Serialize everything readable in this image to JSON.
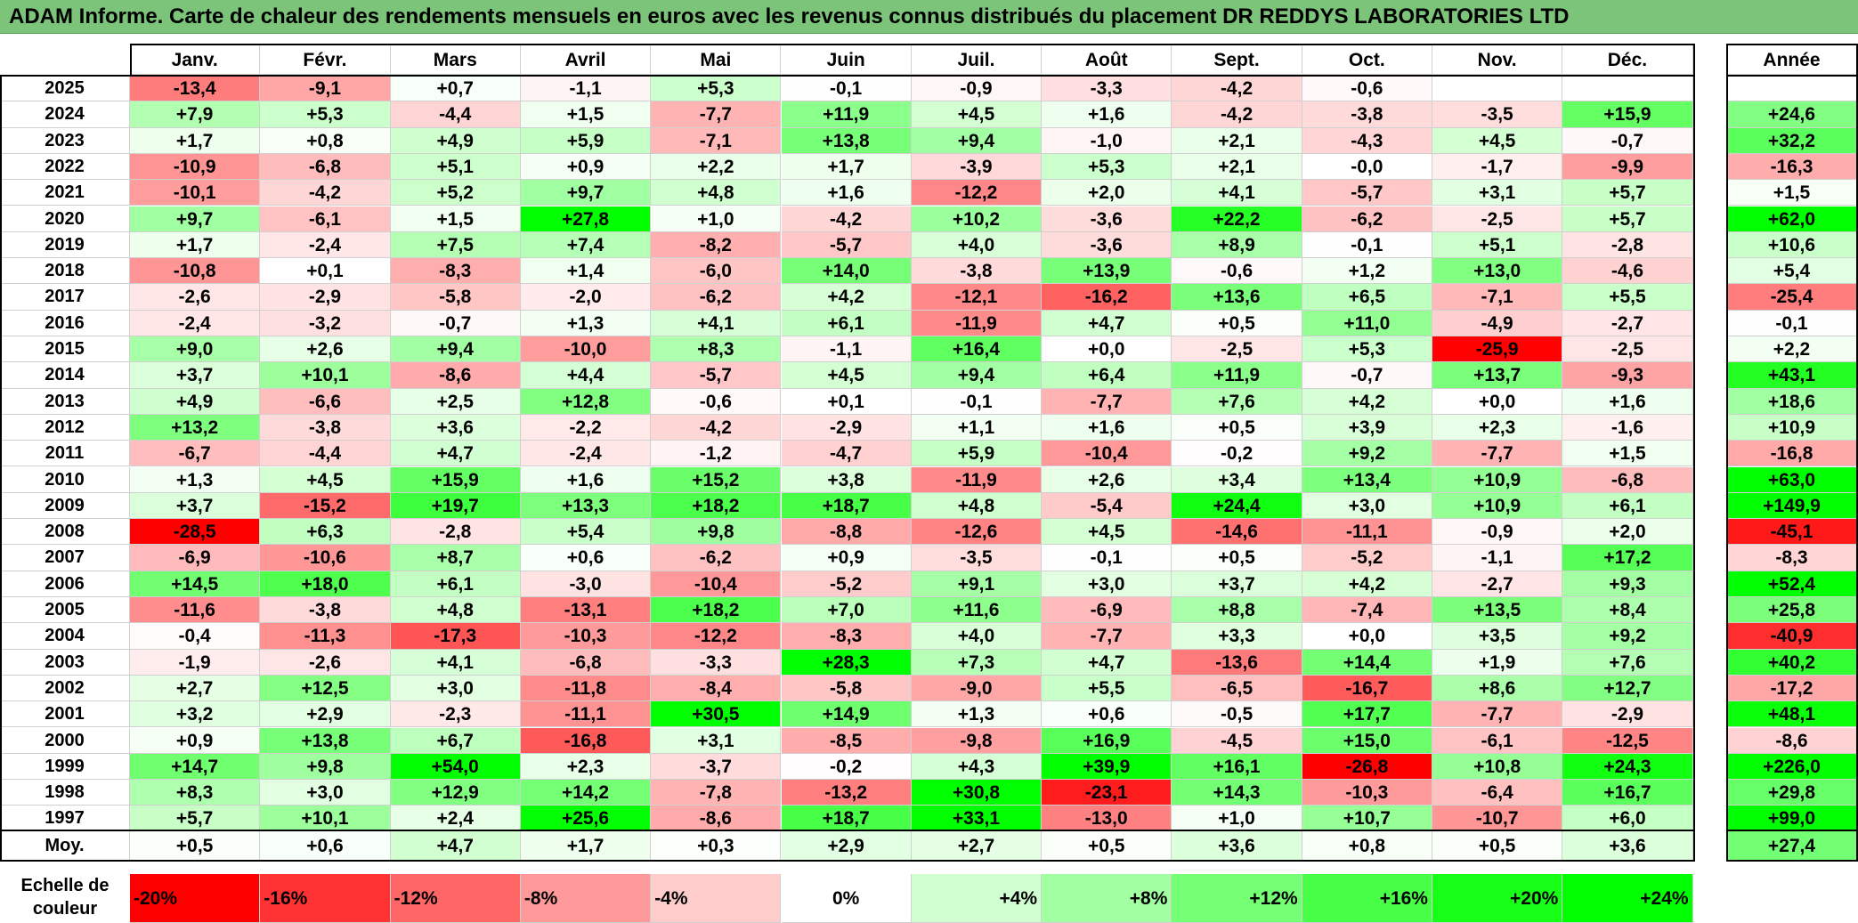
{
  "title": "ADAM Informe. Carte de chaleur des rendements mensuels en euros avec les revenus connus distribués du placement DR REDDYS LABORATORIES LTD",
  "chart_data": {
    "type": "heatmap",
    "months": [
      "Janv.",
      "Févr.",
      "Mars",
      "Avril",
      "Mai",
      "Juin",
      "Juil.",
      "Août",
      "Sept.",
      "Oct.",
      "Nov.",
      "Déc."
    ],
    "year_label": "Année",
    "avg_label": "Moy.",
    "rows": [
      {
        "year": "2025",
        "values": [
          "-13,4",
          "-9,1",
          "+0,7",
          "-1,1",
          "+5,3",
          "-0,1",
          "-0,9",
          "-3,3",
          "-4,2",
          "-0,6",
          "",
          ""
        ],
        "annual": ""
      },
      {
        "year": "2024",
        "values": [
          "+7,9",
          "+5,3",
          "-4,4",
          "+1,5",
          "-7,7",
          "+11,9",
          "+4,5",
          "+1,6",
          "-4,2",
          "-3,8",
          "-3,5",
          "+15,9"
        ],
        "annual": "+24,6"
      },
      {
        "year": "2023",
        "values": [
          "+1,7",
          "+0,8",
          "+4,9",
          "+5,9",
          "-7,1",
          "+13,8",
          "+9,4",
          "-1,0",
          "+2,1",
          "-4,3",
          "+4,5",
          "-0,7"
        ],
        "annual": "+32,2"
      },
      {
        "year": "2022",
        "values": [
          "-10,9",
          "-6,8",
          "+5,1",
          "+0,9",
          "+2,2",
          "+1,7",
          "-3,9",
          "+5,3",
          "+2,1",
          "-0,0",
          "-1,7",
          "-9,9"
        ],
        "annual": "-16,3"
      },
      {
        "year": "2021",
        "values": [
          "-10,1",
          "-4,2",
          "+5,2",
          "+9,7",
          "+4,8",
          "+1,6",
          "-12,2",
          "+2,0",
          "+4,1",
          "-5,7",
          "+3,1",
          "+5,7"
        ],
        "annual": "+1,5"
      },
      {
        "year": "2020",
        "values": [
          "+9,7",
          "-6,1",
          "+1,5",
          "+27,8",
          "+1,0",
          "-4,2",
          "+10,2",
          "-3,6",
          "+22,2",
          "-6,2",
          "-2,5",
          "+5,7"
        ],
        "annual": "+62,0"
      },
      {
        "year": "2019",
        "values": [
          "+1,7",
          "-2,4",
          "+7,5",
          "+7,4",
          "-8,2",
          "-5,7",
          "+4,0",
          "-3,6",
          "+8,9",
          "-0,1",
          "+5,1",
          "-2,8"
        ],
        "annual": "+10,6"
      },
      {
        "year": "2018",
        "values": [
          "-10,8",
          "+0,1",
          "-8,3",
          "+1,4",
          "-6,0",
          "+14,0",
          "-3,8",
          "+13,9",
          "-0,6",
          "+1,2",
          "+13,0",
          "-4,6"
        ],
        "annual": "+5,4"
      },
      {
        "year": "2017",
        "values": [
          "-2,6",
          "-2,9",
          "-5,8",
          "-2,0",
          "-6,2",
          "+4,2",
          "-12,1",
          "-16,2",
          "+13,6",
          "+6,5",
          "-7,1",
          "+5,5"
        ],
        "annual": "-25,4"
      },
      {
        "year": "2016",
        "values": [
          "-2,4",
          "-3,2",
          "-0,7",
          "+1,3",
          "+4,1",
          "+6,1",
          "-11,9",
          "+4,7",
          "+0,5",
          "+11,0",
          "-4,9",
          "-2,7"
        ],
        "annual": "-0,1"
      },
      {
        "year": "2015",
        "values": [
          "+9,0",
          "+2,6",
          "+9,4",
          "-10,0",
          "+8,3",
          "-1,1",
          "+16,4",
          "+0,0",
          "-2,5",
          "+5,3",
          "-25,9",
          "-2,5"
        ],
        "annual": "+2,2"
      },
      {
        "year": "2014",
        "values": [
          "+3,7",
          "+10,1",
          "-8,6",
          "+4,4",
          "-5,7",
          "+4,5",
          "+9,4",
          "+6,4",
          "+11,9",
          "-0,7",
          "+13,7",
          "-9,3"
        ],
        "annual": "+43,1"
      },
      {
        "year": "2013",
        "values": [
          "+4,9",
          "-6,6",
          "+2,5",
          "+12,8",
          "-0,6",
          "+0,1",
          "-0,1",
          "-7,7",
          "+7,6",
          "+4,2",
          "+0,0",
          "+1,6"
        ],
        "annual": "+18,6"
      },
      {
        "year": "2012",
        "values": [
          "+13,2",
          "-3,8",
          "+3,6",
          "-2,2",
          "-4,2",
          "-2,9",
          "+1,1",
          "+1,6",
          "+0,5",
          "+3,9",
          "+2,3",
          "-1,6"
        ],
        "annual": "+10,9"
      },
      {
        "year": "2011",
        "values": [
          "-6,7",
          "-4,4",
          "+4,7",
          "-2,4",
          "-1,2",
          "-4,7",
          "+5,9",
          "-10,4",
          "-0,2",
          "+9,2",
          "-7,7",
          "+1,5"
        ],
        "annual": "-16,8"
      },
      {
        "year": "2010",
        "values": [
          "+1,3",
          "+4,5",
          "+15,9",
          "+1,6",
          "+15,2",
          "+3,8",
          "-11,9",
          "+2,6",
          "+3,4",
          "+13,4",
          "+10,9",
          "-6,8"
        ],
        "annual": "+63,0"
      },
      {
        "year": "2009",
        "values": [
          "+3,7",
          "-15,2",
          "+19,7",
          "+13,3",
          "+18,2",
          "+18,7",
          "+4,8",
          "-5,4",
          "+24,4",
          "+3,0",
          "+10,9",
          "+6,1"
        ],
        "annual": "+149,9"
      },
      {
        "year": "2008",
        "values": [
          "-28,5",
          "+6,3",
          "-2,8",
          "+5,4",
          "+9,8",
          "-8,8",
          "-12,6",
          "+4,5",
          "-14,6",
          "-11,1",
          "-0,9",
          "+2,0"
        ],
        "annual": "-45,1"
      },
      {
        "year": "2007",
        "values": [
          "-6,9",
          "-10,6",
          "+8,7",
          "+0,6",
          "-6,2",
          "+0,9",
          "-3,5",
          "-0,1",
          "+0,5",
          "-5,2",
          "-1,1",
          "+17,2"
        ],
        "annual": "-8,3"
      },
      {
        "year": "2006",
        "values": [
          "+14,5",
          "+18,0",
          "+6,1",
          "-3,0",
          "-10,4",
          "-5,2",
          "+9,1",
          "+3,0",
          "+3,7",
          "+4,2",
          "-2,7",
          "+9,3"
        ],
        "annual": "+52,4"
      },
      {
        "year": "2005",
        "values": [
          "-11,6",
          "-3,8",
          "+4,8",
          "-13,1",
          "+18,2",
          "+7,0",
          "+11,6",
          "-6,9",
          "+8,8",
          "-7,4",
          "+13,5",
          "+8,4"
        ],
        "annual": "+25,8"
      },
      {
        "year": "2004",
        "values": [
          "-0,4",
          "-11,3",
          "-17,3",
          "-10,3",
          "-12,2",
          "-8,3",
          "+4,0",
          "-7,7",
          "+3,3",
          "+0,0",
          "+3,5",
          "+9,2"
        ],
        "annual": "-40,9"
      },
      {
        "year": "2003",
        "values": [
          "-1,9",
          "-2,6",
          "+4,1",
          "-6,8",
          "-3,3",
          "+28,3",
          "+7,3",
          "+4,7",
          "-13,6",
          "+14,4",
          "+1,9",
          "+7,6"
        ],
        "annual": "+40,2"
      },
      {
        "year": "2002",
        "values": [
          "+2,7",
          "+12,5",
          "+3,0",
          "-11,8",
          "-8,4",
          "-5,8",
          "-9,0",
          "+5,5",
          "-6,5",
          "-16,7",
          "+8,6",
          "+12,7"
        ],
        "annual": "-17,2"
      },
      {
        "year": "2001",
        "values": [
          "+3,2",
          "+2,9",
          "-2,3",
          "-11,1",
          "+30,5",
          "+14,9",
          "+1,3",
          "+0,6",
          "-0,5",
          "+17,7",
          "-7,7",
          "-2,9"
        ],
        "annual": "+48,1"
      },
      {
        "year": "2000",
        "values": [
          "+0,9",
          "+13,8",
          "+6,7",
          "-16,8",
          "+3,1",
          "-8,5",
          "-9,8",
          "+16,9",
          "-4,5",
          "+15,0",
          "-6,1",
          "-12,5"
        ],
        "annual": "-8,6"
      },
      {
        "year": "1999",
        "values": [
          "+14,7",
          "+9,8",
          "+54,0",
          "+2,3",
          "-3,7",
          "-0,2",
          "+4,3",
          "+39,9",
          "+16,1",
          "-26,8",
          "+10,8",
          "+24,3"
        ],
        "annual": "+226,0"
      },
      {
        "year": "1998",
        "values": [
          "+8,3",
          "+3,0",
          "+12,9",
          "+14,2",
          "-7,8",
          "-13,2",
          "+30,8",
          "-23,1",
          "+14,3",
          "-10,3",
          "-6,4",
          "+16,7"
        ],
        "annual": "+29,8"
      },
      {
        "year": "1997",
        "values": [
          "+5,7",
          "+10,1",
          "+2,4",
          "+25,6",
          "-8,6",
          "+18,7",
          "+33,1",
          "-13,0",
          "+1,0",
          "+10,7",
          "-10,7",
          "+6,0"
        ],
        "annual": "+99,0"
      }
    ],
    "averages": [
      "+0,5",
      "+0,6",
      "+4,7",
      "+1,7",
      "+0,3",
      "+2,9",
      "+2,7",
      "+0,5",
      "+3,6",
      "+0,8",
      "+0,5",
      "+3,6"
    ],
    "average_annual": "+27,4",
    "scale_label": "Echelle de couleur",
    "scale": [
      {
        "label": "-20%",
        "value": -20
      },
      {
        "label": "-16%",
        "value": -16
      },
      {
        "label": "-12%",
        "value": -12
      },
      {
        "label": "-8%",
        "value": -8
      },
      {
        "label": "-4%",
        "value": -4
      },
      {
        "label": "0%",
        "value": 0
      },
      {
        "label": "+4%",
        "value": 4
      },
      {
        "label": "+8%",
        "value": 8
      },
      {
        "label": "+12%",
        "value": 12
      },
      {
        "label": "+16%",
        "value": 16
      },
      {
        "label": "+20%",
        "value": 20
      },
      {
        "label": "+24%",
        "value": 24
      }
    ]
  }
}
